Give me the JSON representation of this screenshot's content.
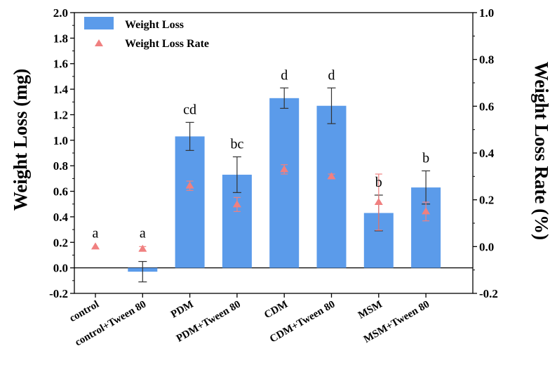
{
  "chart_data": {
    "type": "bar",
    "categories": [
      "control",
      "control+Tween 80",
      "PDM",
      "PDM+Tween 80",
      "CDM",
      "CDM+Tween 80",
      "MSM",
      "MSM+Tween 80"
    ],
    "ylabel": "Weight Loss (mg)",
    "ylabel_right": "Weight Loss Rate (%)",
    "ylim": [
      -0.2,
      2.0
    ],
    "ylim_right": [
      -0.2,
      1.0
    ],
    "yticks": [
      -0.2,
      0.0,
      0.2,
      0.4,
      0.6,
      0.8,
      1.0,
      1.2,
      1.4,
      1.6,
      1.8,
      2.0
    ],
    "yticks_right": [
      -0.2,
      0.0,
      0.2,
      0.4,
      0.6,
      0.8,
      1.0
    ],
    "series": [
      {
        "name": "Weight Loss",
        "axis": "left",
        "mark": "bar",
        "color": "#5b9bea",
        "values": [
          0.0,
          -0.03,
          1.03,
          0.73,
          1.33,
          1.27,
          0.43,
          0.63
        ],
        "errors": [
          0.0,
          0.08,
          0.11,
          0.14,
          0.08,
          0.14,
          0.14,
          0.13
        ]
      },
      {
        "name": "Weight Loss Rate",
        "axis": "right",
        "mark": "triangle",
        "color": "#f08080",
        "values": [
          0.0,
          -0.01,
          0.26,
          0.18,
          0.33,
          0.3,
          0.19,
          0.15
        ],
        "errors": [
          0.0,
          0.01,
          0.02,
          0.03,
          0.02,
          0.01,
          0.12,
          0.04
        ]
      }
    ],
    "significance_labels": [
      "a",
      "a",
      "cd",
      "bc",
      "d",
      "d",
      "b",
      "b"
    ],
    "legend_position": "top-left",
    "grid": false
  }
}
